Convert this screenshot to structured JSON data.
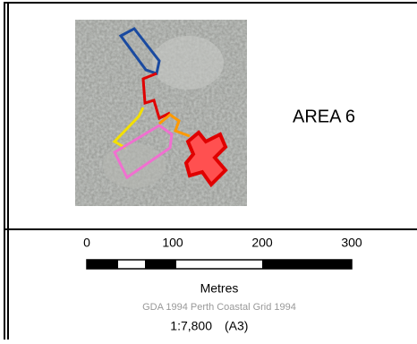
{
  "map": {
    "area_label": "AREA 6",
    "scale_bar": {
      "labels": [
        "0",
        "100",
        "200",
        "300"
      ],
      "unit": "Metres"
    },
    "projection": "GDA 1994 Perth Coastal Grid 1994",
    "scale": "1:7,800",
    "paper": "(A3)"
  }
}
